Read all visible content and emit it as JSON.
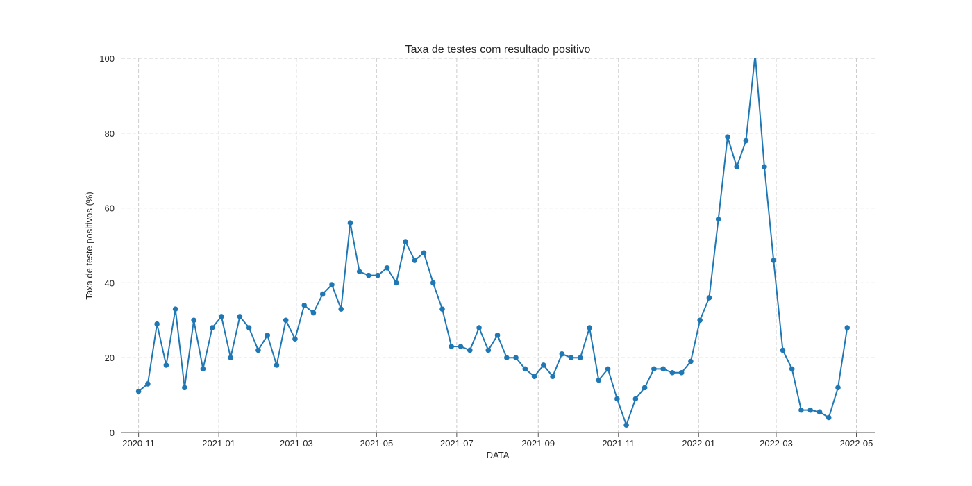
{
  "chart_data": {
    "type": "line",
    "title": "Taxa de testes com resultado positivo",
    "xlabel": "DATA",
    "ylabel": "Taxa de teste positivos (%)",
    "ylim": [
      0,
      100
    ],
    "yticks": [
      0,
      20,
      40,
      60,
      80,
      100
    ],
    "xlim": [
      "2020-10-19",
      "2022-05-15"
    ],
    "xticks": [
      "2020-11",
      "2021-01",
      "2021-03",
      "2021-05",
      "2021-07",
      "2021-09",
      "2021-11",
      "2022-01",
      "2022-03",
      "2022-05"
    ],
    "grid": true,
    "legend": "none",
    "color": "#1f77b4",
    "series": [
      {
        "x": [
          "2020-11-01",
          "2020-11-08",
          "2020-11-15",
          "2020-11-22",
          "2020-11-29",
          "2020-12-06",
          "2020-12-13",
          "2020-12-20",
          "2020-12-27",
          "2021-01-03",
          "2021-01-10",
          "2021-01-17",
          "2021-01-24",
          "2021-01-31",
          "2021-02-07",
          "2021-02-14",
          "2021-02-21",
          "2021-02-28",
          "2021-03-07",
          "2021-03-14",
          "2021-03-21",
          "2021-03-28",
          "2021-04-04",
          "2021-04-11",
          "2021-04-18",
          "2021-04-25",
          "2021-05-02",
          "2021-05-09",
          "2021-05-16",
          "2021-05-23",
          "2021-05-30",
          "2021-06-06",
          "2021-06-13",
          "2021-06-20",
          "2021-06-27",
          "2021-07-04",
          "2021-07-11",
          "2021-07-18",
          "2021-07-25",
          "2021-08-01",
          "2021-08-08",
          "2021-08-15",
          "2021-08-22",
          "2021-08-29",
          "2021-09-05",
          "2021-09-12",
          "2021-09-19",
          "2021-09-26",
          "2021-10-03",
          "2021-10-10",
          "2021-10-17",
          "2021-10-24",
          "2021-10-31",
          "2021-11-07",
          "2021-11-14",
          "2021-11-21",
          "2021-11-28",
          "2021-12-05",
          "2021-12-12",
          "2021-12-19",
          "2021-12-26",
          "2022-01-02",
          "2022-01-09",
          "2022-01-16",
          "2022-01-23",
          "2022-01-30",
          "2022-02-06",
          "2022-02-13",
          "2022-02-20",
          "2022-02-27",
          "2022-03-06",
          "2022-03-13",
          "2022-03-20",
          "2022-03-27",
          "2022-04-03",
          "2022-04-10",
          "2022-04-17",
          "2022-04-24"
        ],
        "values": [
          11,
          13,
          29,
          18,
          33,
          12,
          30,
          17,
          28,
          31,
          20,
          31,
          28,
          22,
          26,
          18,
          30,
          25,
          34,
          32,
          37,
          39.5,
          33,
          56,
          43,
          42,
          42,
          44,
          40,
          51,
          46,
          48,
          40,
          33,
          23,
          23,
          22,
          28,
          22,
          26,
          20,
          20,
          17,
          15,
          18,
          15,
          21,
          20,
          20,
          28,
          14,
          17,
          9,
          2,
          9,
          12,
          17,
          17,
          16,
          16,
          19,
          30,
          36,
          57,
          79,
          71,
          78,
          101,
          71,
          46,
          22,
          17,
          6,
          6,
          5.5,
          4,
          12,
          28
        ]
      }
    ]
  }
}
